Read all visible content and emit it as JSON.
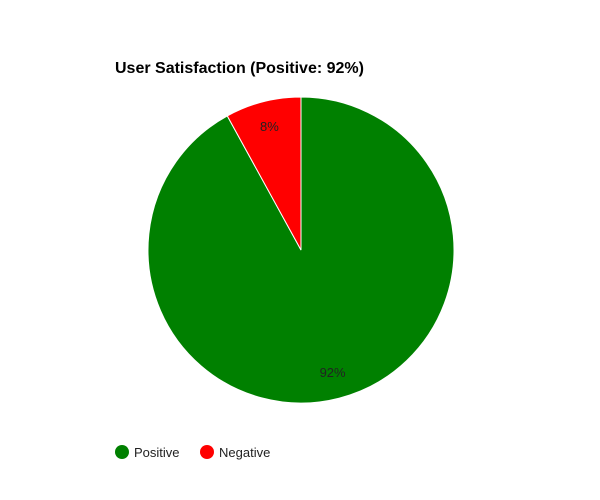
{
  "chart_data": {
    "type": "pie",
    "title": "User Satisfaction (Positive: 92%)",
    "labels": [
      "Positive",
      "Negative"
    ],
    "values": [
      92,
      8
    ],
    "value_labels": [
      "92%",
      "8%"
    ],
    "colors": [
      "#008000",
      "#ff0000"
    ],
    "slice_border_color": "#ffffff",
    "legend_position": "bottom-left"
  }
}
